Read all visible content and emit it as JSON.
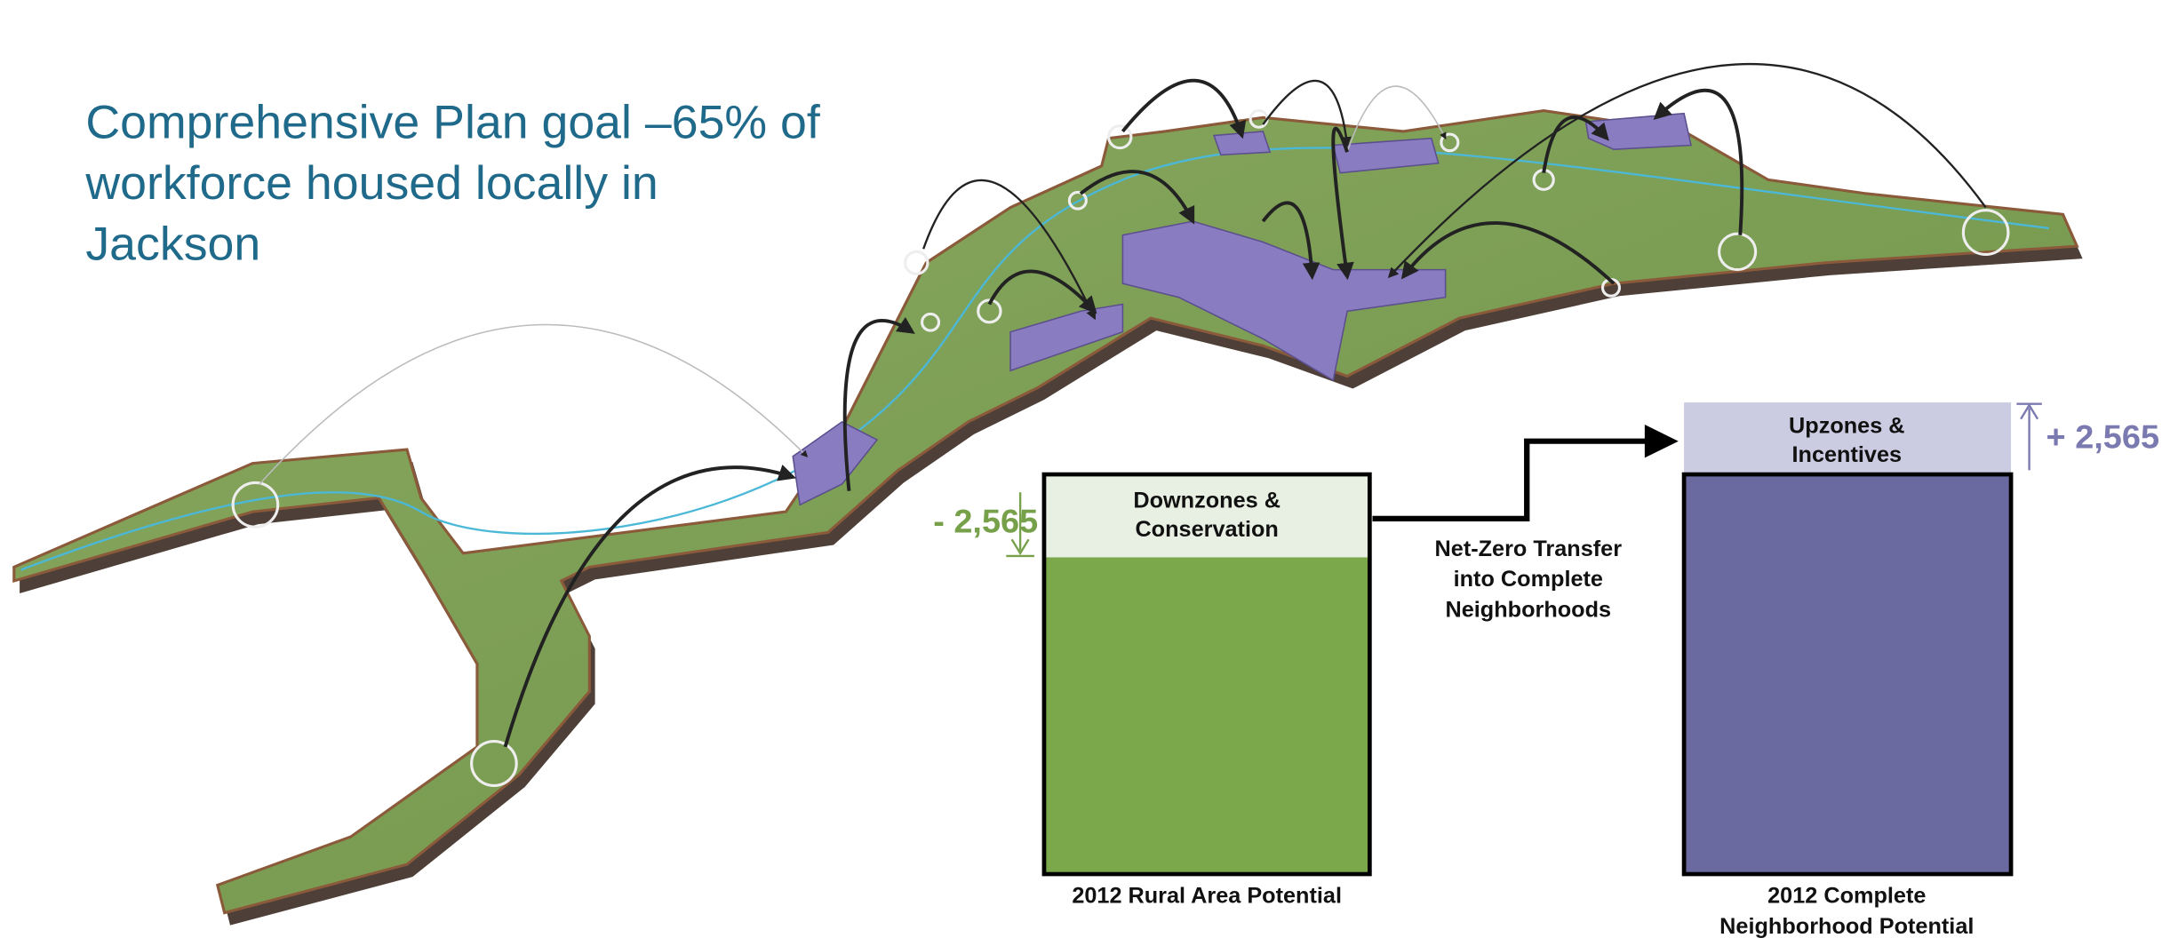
{
  "title": [
    "Comprehensive Plan goal –65% of",
    "workforce housed locally in",
    "Jackson"
  ],
  "rural": {
    "top_label": [
      "Downzones &",
      "Conservation"
    ],
    "change": "- 2,565",
    "caption": [
      "2012 Rural Area Potential"
    ]
  },
  "transfer": [
    "Net-Zero Transfer",
    "into Complete",
    "Neighborhoods"
  ],
  "neighborhood": {
    "top_label": [
      "Upzones &",
      "Incentives"
    ],
    "change": "+ 2,565",
    "caption": [
      "2012 Complete",
      "Neighborhood Potential"
    ]
  }
}
